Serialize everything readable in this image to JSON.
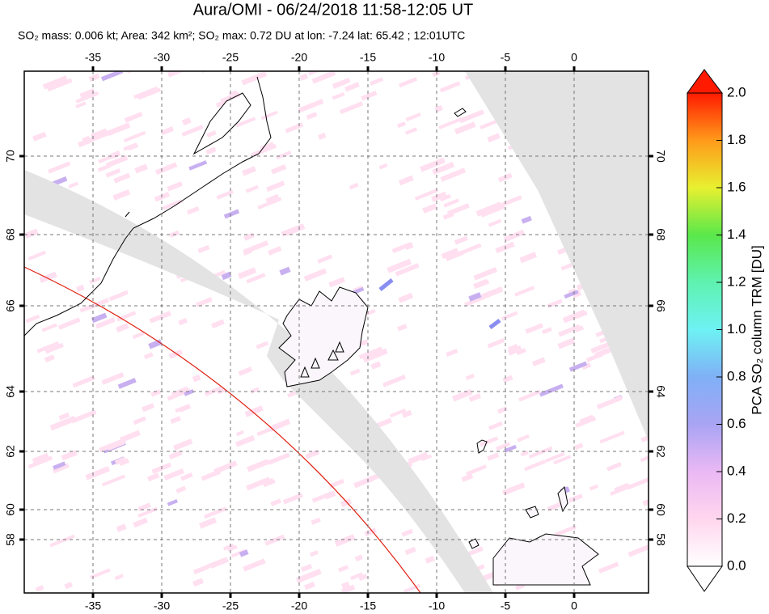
{
  "header": {
    "title": "Aura/OMI - 06/24/2018 11:58-12:05 UT",
    "subtitle": "SO₂ mass: 0.006 kt; Area: 342 km²; SO₂ max: 0.72 DU at lon: -7.24 lat: 65.42 ; 12:01UTC"
  },
  "map": {
    "lon_ticks": [
      -35,
      -30,
      -25,
      -20,
      -15,
      -10,
      -5,
      0
    ],
    "lat_ticks": [
      70,
      68,
      66,
      64,
      62,
      60,
      58
    ]
  },
  "colorbar": {
    "label": "PCA SO₂ column TRM [DU]",
    "ticks": [
      {
        "value": 0,
        "label": "0.0"
      },
      0.2,
      0.4,
      0.6,
      0.8,
      {
        "value": 1,
        "label": "1.0"
      },
      1.2,
      1.4,
      1.6,
      1.8,
      {
        "value": 2,
        "label": "2.0"
      }
    ]
  }
}
